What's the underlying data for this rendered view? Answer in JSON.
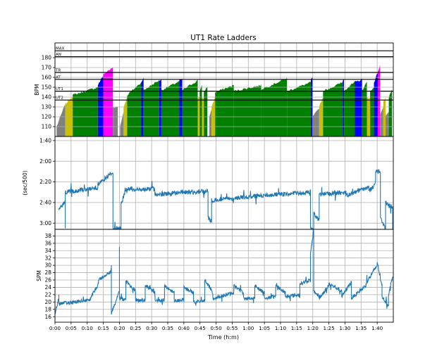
{
  "chart_data": [
    {
      "type": "area",
      "title": "UT1 Rate Ladders",
      "ylabel": "BPM",
      "ylim": [
        100,
        195
      ],
      "yticks": [
        110,
        120,
        130,
        140,
        150,
        160,
        170,
        180
      ],
      "grid": true,
      "zone_lines": [
        {
          "name": "MAX",
          "value": 187
        },
        {
          "name": "AN",
          "value": 181
        },
        {
          "name": "TR",
          "value": 165
        },
        {
          "name": "AT",
          "value": 158
        },
        {
          "name": "UT1",
          "value": 146
        },
        {
          "name": "UT2",
          "value": 137
        }
      ],
      "zone_colors": {
        "rest": "#808080",
        "ut2": "#c8c000",
        "ut1": "#008000",
        "at": "#0000ff",
        "tr": "#ff00ff",
        "gap": "#ffffff"
      },
      "segments": [
        [
          0.5,
          3.2,
          "rest",
          110,
          133
        ],
        [
          3.2,
          5.5,
          "ut2",
          133,
          141
        ],
        [
          5.5,
          13.3,
          "ut1",
          142,
          150
        ],
        [
          13.3,
          15.0,
          "at",
          152,
          162
        ],
        [
          15.0,
          18.0,
          "tr",
          163,
          170
        ],
        [
          18.0,
          19.5,
          "rest",
          130,
          130
        ],
        [
          19.5,
          20.2,
          "gap",
          100,
          100
        ],
        [
          20.2,
          21.3,
          "rest",
          110,
          125
        ],
        [
          21.3,
          22.4,
          "ut2",
          130,
          140
        ],
        [
          22.4,
          26.8,
          "ut1",
          142,
          155
        ],
        [
          26.8,
          27.5,
          "at",
          156,
          159
        ],
        [
          27.5,
          32.3,
          "ut1",
          147,
          157
        ],
        [
          32.3,
          33.0,
          "at",
          157,
          158
        ],
        [
          33.0,
          38.6,
          "ut1",
          147,
          156
        ],
        [
          38.6,
          39.5,
          "at",
          157,
          158
        ],
        [
          39.5,
          44.3,
          "ut1",
          147,
          157
        ],
        [
          44.3,
          44.9,
          "ut2",
          139,
          140
        ],
        [
          44.9,
          45.6,
          "ut1",
          146,
          152
        ],
        [
          45.6,
          46.2,
          "ut2",
          138,
          139
        ],
        [
          46.2,
          47.3,
          "ut1",
          146,
          150
        ],
        [
          47.3,
          47.9,
          "gap",
          100,
          100
        ],
        [
          47.9,
          48.6,
          "rest",
          120,
          128
        ],
        [
          48.6,
          49.7,
          "ut2",
          130,
          140
        ],
        [
          49.7,
          55.5,
          "ut1",
          145,
          152
        ],
        [
          55.5,
          64.0,
          "ut1",
          146,
          152
        ],
        [
          64.0,
          72.0,
          "ut1",
          148,
          159
        ],
        [
          72.0,
          79.4,
          "ut1",
          146,
          155
        ],
        [
          79.4,
          79.9,
          "at",
          157,
          160
        ],
        [
          79.9,
          82.0,
          "rest",
          120,
          128
        ],
        [
          82.0,
          83.2,
          "ut2",
          131,
          140
        ],
        [
          83.2,
          89.3,
          "ut1",
          146,
          155
        ],
        [
          89.3,
          89.7,
          "at",
          157,
          158
        ],
        [
          89.7,
          93.0,
          "ut1",
          147,
          155
        ],
        [
          93.0,
          95.3,
          "at",
          155,
          158
        ],
        [
          95.3,
          96.8,
          "ut1",
          147,
          155
        ],
        [
          96.8,
          97.8,
          "ut2",
          139,
          140
        ],
        [
          97.8,
          99.0,
          "ut1",
          145,
          150
        ],
        [
          99.0,
          100.2,
          "at",
          155,
          165
        ],
        [
          100.2,
          100.9,
          "tr",
          166,
          172
        ],
        [
          100.9,
          101.9,
          "rest",
          122,
          130
        ],
        [
          101.9,
          102.6,
          "ut2",
          135,
          140
        ],
        [
          102.6,
          103.6,
          "rest",
          121,
          125
        ],
        [
          103.6,
          104.6,
          "ut1",
          140,
          148
        ]
      ]
    },
    {
      "type": "line",
      "ylabel": "(sec/500)",
      "ylim": [
        186,
        96
      ],
      "yticks": [
        100,
        120,
        140,
        160,
        180
      ],
      "yticklabels": [
        "1:40",
        "2:00",
        "2:20",
        "2:40",
        "3:00"
      ],
      "grid": true,
      "series_color": "#1f77b4",
      "blocks": [
        [
          1.2,
          3.2,
          165,
          160,
          185
        ],
        [
          3.2,
          13.3,
          150,
          146,
          0
        ],
        [
          13.3,
          18.0,
          143,
          131,
          0
        ],
        [
          18.0,
          20.5,
          185,
          185,
          186
        ],
        [
          20.5,
          21.7,
          162,
          150,
          0
        ],
        [
          21.7,
          31.0,
          147,
          147,
          0
        ],
        [
          31.0,
          47.5,
          152,
          149,
          0
        ],
        [
          47.5,
          48.6,
          175,
          178,
          0
        ],
        [
          48.6,
          58.0,
          158,
          155,
          0
        ],
        [
          58.0,
          79.3,
          155,
          150,
          0
        ],
        [
          79.3,
          80.3,
          186,
          186,
          0
        ],
        [
          80.3,
          82.0,
          170,
          178,
          0
        ],
        [
          82.0,
          90.3,
          152,
          150,
          0
        ],
        [
          90.3,
          97.4,
          153,
          145,
          0
        ],
        [
          97.4,
          99.5,
          150,
          140,
          0
        ],
        [
          99.5,
          101.0,
          130,
          130,
          0
        ],
        [
          101.0,
          102.6,
          175,
          185,
          0
        ],
        [
          102.6,
          104.8,
          160,
          165,
          186
        ]
      ]
    },
    {
      "type": "line",
      "ylabel": "SPM",
      "xlabel": "Time (h:m)",
      "ylim": [
        14.5,
        39.8
      ],
      "yticks": [
        16,
        18,
        20,
        22,
        24,
        26,
        28,
        30,
        32,
        34,
        36,
        38
      ],
      "xlim": [
        0,
        105
      ],
      "xticks": [
        0,
        5,
        10,
        15,
        20,
        25,
        30,
        35,
        40,
        45,
        50,
        55,
        60,
        65,
        70,
        75,
        80,
        85,
        90,
        95,
        100
      ],
      "xticklabels": [
        "0:00",
        "0:05",
        "0:10",
        "0:15",
        "0:20",
        "0:25",
        "0:30",
        "0:35",
        "0:40",
        "0:45",
        "0:50",
        "0:55",
        "1:00",
        "1:05",
        "1:10",
        "1:15",
        "1:20",
        "1:25",
        "1:30",
        "1:35",
        "1:40"
      ],
      "grid": true,
      "series_color": "#1f77b4",
      "blocks": [
        [
          0.0,
          1.2,
          17.0,
          21.0,
          22
        ],
        [
          1.2,
          11.0,
          19.5,
          20.5,
          0
        ],
        [
          11.0,
          13.5,
          21.0,
          25.0,
          0
        ],
        [
          13.5,
          17.5,
          26.0,
          28.5,
          30
        ],
        [
          17.5,
          20.0,
          17.0,
          23.0,
          35
        ],
        [
          20.0,
          22.0,
          21.0,
          20.5,
          0
        ],
        [
          22.0,
          25.0,
          25.5,
          23.0,
          0
        ],
        [
          25.0,
          28.0,
          20.5,
          20.5,
          0
        ],
        [
          28.0,
          31.0,
          24.5,
          22.5,
          0
        ],
        [
          31.0,
          34.0,
          20.5,
          20.5,
          0
        ],
        [
          34.0,
          37.0,
          24.5,
          22.5,
          0
        ],
        [
          37.0,
          40.0,
          20.5,
          20.5,
          0
        ],
        [
          40.0,
          43.0,
          24.0,
          22.5,
          0
        ],
        [
          43.0,
          46.5,
          20.0,
          20.5,
          0
        ],
        [
          46.5,
          49.0,
          26.0,
          22.5,
          0
        ],
        [
          49.0,
          55.5,
          21.0,
          22.5,
          0
        ],
        [
          55.5,
          58.5,
          24.5,
          22.5,
          0
        ],
        [
          58.5,
          62.0,
          21.0,
          21.0,
          0
        ],
        [
          62.0,
          65.0,
          24.5,
          22.5,
          0
        ],
        [
          65.0,
          68.5,
          21.0,
          21.5,
          0
        ],
        [
          68.5,
          71.5,
          24.5,
          22.5,
          0
        ],
        [
          71.5,
          76.0,
          21.5,
          22.0,
          0
        ],
        [
          76.0,
          79.3,
          25.0,
          26.0,
          0
        ],
        [
          79.3,
          80.3,
          33.0,
          39.8,
          0
        ],
        [
          80.3,
          82.0,
          23.0,
          21.5,
          0
        ],
        [
          82.0,
          85.0,
          21.0,
          24.5,
          0
        ],
        [
          85.0,
          89.0,
          25.0,
          23.0,
          0
        ],
        [
          89.0,
          92.0,
          21.5,
          25.5,
          0
        ],
        [
          92.0,
          96.5,
          21.0,
          24.5,
          0
        ],
        [
          96.5,
          100.0,
          25.0,
          30.0,
          0
        ],
        [
          100.0,
          101.5,
          31.0,
          24.0,
          0
        ],
        [
          101.5,
          103.5,
          21.5,
          19.0,
          0
        ],
        [
          103.5,
          104.8,
          22.0,
          27.0,
          0
        ]
      ]
    }
  ]
}
